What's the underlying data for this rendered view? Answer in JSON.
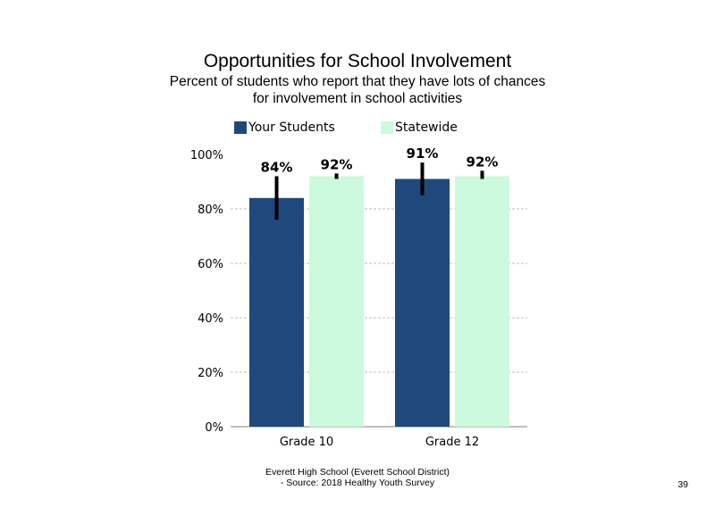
{
  "title": "Opportunities  for School Involvement",
  "subtitle_line1": "Percent of students  who report that they have lots of chances",
  "subtitle_line2": "for involvement  in school activities",
  "footer_line1": "Everett High  School (Everett School District)",
  "footer_line2": "- Source: 2018 Healthy  Youth Survey",
  "page_number": "39",
  "colors": {
    "your_students": "#1f497d",
    "statewide": "#ccfadc",
    "error_bar": "#000000",
    "grid": "#bfbfbf"
  },
  "chart_data": {
    "type": "bar",
    "title": "Opportunities  for School Involvement",
    "categories": [
      "Grade 10",
      "Grade 12"
    ],
    "series": [
      {
        "name": "Your Students",
        "values": [
          84,
          91
        ],
        "labels": [
          "84%",
          "91%"
        ],
        "error_low": [
          76,
          85
        ],
        "error_high": [
          92,
          97
        ]
      },
      {
        "name": "Statewide",
        "values": [
          92,
          92
        ],
        "labels": [
          "92%",
          "92%"
        ],
        "error_low": [
          91,
          91
        ],
        "error_high": [
          93,
          94
        ]
      }
    ],
    "yticks": [
      "0%",
      "20%",
      "40%",
      "60%",
      "80%",
      "100%"
    ],
    "ylim": [
      0,
      100
    ],
    "grid": true,
    "legend": "top"
  }
}
